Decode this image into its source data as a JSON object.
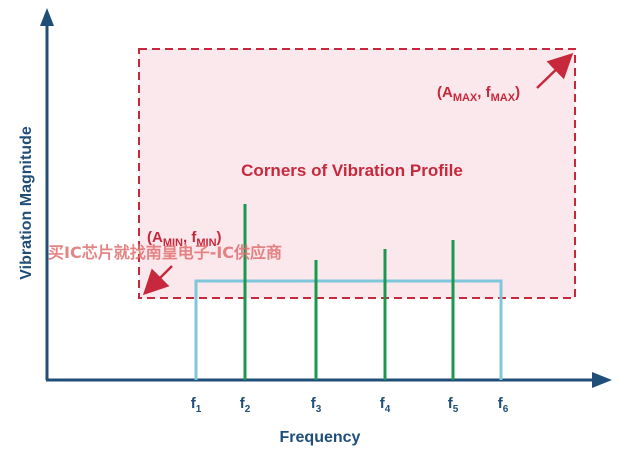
{
  "diagram": {
    "y_axis_label": "Vibration Magnitude",
    "x_axis_label": "Frequency",
    "profile_label": "Corners of Vibration Profile",
    "corner_max": {
      "prefix": "(A",
      "a_sub": "MAX",
      "mid": ", f",
      "f_sub": "MAX",
      "suffix": ")"
    },
    "corner_min": {
      "prefix": "(A",
      "a_sub": "MIN",
      "mid": ", f",
      "f_sub": "MIN",
      "suffix": ")"
    },
    "freq_ticks": [
      {
        "base": "f",
        "sub": "1"
      },
      {
        "base": "f",
        "sub": "2"
      },
      {
        "base": "f",
        "sub": "3"
      },
      {
        "base": "f",
        "sub": "4"
      },
      {
        "base": "f",
        "sub": "5"
      },
      {
        "base": "f",
        "sub": "6"
      }
    ],
    "watermark": "买IC芯片就找南皇电子-IC供应商"
  },
  "colors": {
    "axis": "#1f4e79",
    "profile_fill": "#fbe8ec",
    "profile_border": "#c8283c",
    "envelope": "#7fc8dc",
    "spectral_line": "#1a9850"
  }
}
